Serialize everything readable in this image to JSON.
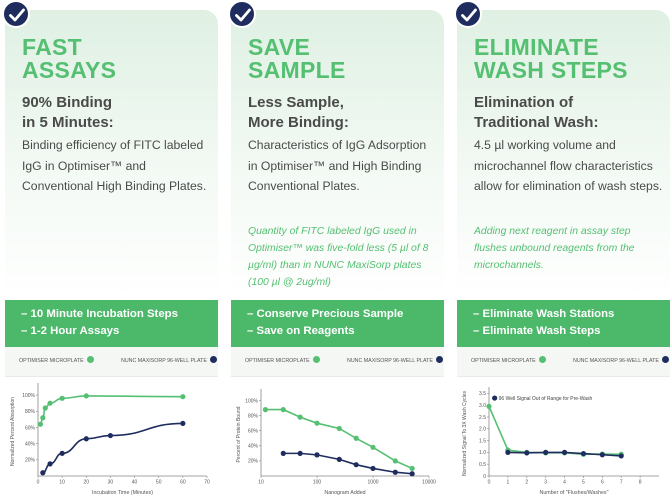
{
  "colors": {
    "green": "#55bf72",
    "green_bar": "#4cb96a",
    "navy": "#1f2d5e",
    "text": "#4a4a4a"
  },
  "panels": [
    {
      "title": "FAST\nASSAYS",
      "subtitle": "90% Binding\nin 5 Minutes:",
      "description": "Binding efficiency of FITC labeled IgG in Optimiser™ and Conventional High Binding Plates.",
      "note": "",
      "bullets": [
        "– 10 Minute Incubation Steps",
        "– 1-2 Hour Assays"
      ],
      "legend": {
        "optimiser": "OPTIMISER MICROPLATE",
        "nunc": "NUNC MAXISORP 96-WELL PLATE"
      }
    },
    {
      "title": "SAVE\nSAMPLE",
      "subtitle": "Less Sample,\nMore Binding:",
      "description": "Characteristics of IgG Adsorption in Optimiser™ and High Binding Conventional Plates.",
      "note": "Quantity of FITC labeled IgG used in Optimiser™ was five-fold less (5 µl of 8 µg/ml) than in NUNC MaxiSorp plates (100 µl @ 2ug/ml)",
      "bullets": [
        "– Conserve Precious Sample",
        "– Save on Reagents"
      ],
      "legend": {
        "optimiser": "OPTIMISER MICROPLATE",
        "nunc": "NUNC MAXISORP 96-WELL PLATE"
      }
    },
    {
      "title": "ELIMINATE\nWASH STEPS",
      "subtitle": "Elimination of\nTraditional Wash:",
      "description": "4.5 µl working volume and microchannel flow characteristics allow for elimination of wash steps.",
      "note": "Adding next reagent in assay step flushes unbound reagents from the microchannels.",
      "bullets": [
        "– Eliminate Wash Stations",
        "– Eliminate Wash Steps"
      ],
      "legend": {
        "optimiser": "OPTIMISER MICROPLATE",
        "nunc": "NUNC MAXISORP 96-WELL PLATE"
      }
    }
  ],
  "chart_data": [
    {
      "type": "line",
      "xlabel": "Incubation Time (Minutes)",
      "ylabel": "Normalized Percent Absorption",
      "xlim": [
        0,
        70
      ],
      "ylim": [
        0,
        110
      ],
      "xticks": [
        "0",
        "10",
        "20",
        "30",
        "40",
        "50",
        "60",
        "70"
      ],
      "xtick_values": [
        0,
        10,
        20,
        30,
        40,
        50,
        60,
        70
      ],
      "yticks": [
        "20%",
        "40%",
        "60%",
        "80%",
        "100%"
      ],
      "ytick_values": [
        20,
        40,
        60,
        80,
        100
      ],
      "series": [
        {
          "name": "OPTIMISER MICROPLATE",
          "color": "#55bf72",
          "x": [
            1,
            2,
            3,
            5,
            10,
            20,
            60
          ],
          "y": [
            64,
            72,
            84,
            90,
            96,
            99,
            98
          ]
        },
        {
          "name": "NUNC MAXISORP 96-WELL PLATE",
          "color": "#1f2d5e",
          "x": [
            2,
            5,
            10,
            20,
            30,
            60
          ],
          "y": [
            4,
            15,
            28,
            46,
            50,
            65
          ]
        }
      ]
    },
    {
      "type": "line",
      "xscale": "log",
      "xlabel": "Nanogram Added",
      "ylabel": "Percent of Protein Bound",
      "xlim": [
        10,
        10000
      ],
      "ylim": [
        0,
        110
      ],
      "xticks": [
        "10",
        "100",
        "1000",
        "10000"
      ],
      "xtick_values": [
        10,
        100,
        1000,
        10000
      ],
      "yticks": [
        "20%",
        "40%",
        "60%",
        "80%",
        "100%"
      ],
      "ytick_values": [
        20,
        40,
        60,
        80,
        100
      ],
      "series": [
        {
          "name": "OPTIMISER MICROPLATE",
          "color": "#55bf72",
          "x": [
            12,
            25,
            50,
            100,
            250,
            500,
            1000,
            2500,
            5000
          ],
          "y": [
            88,
            88,
            78,
            70,
            63,
            50,
            38,
            20,
            10
          ]
        },
        {
          "name": "NUNC MAXISORP 96-WELL PLATE",
          "color": "#1f2d5e",
          "x": [
            25,
            50,
            100,
            250,
            500,
            1000,
            2500,
            5000
          ],
          "y": [
            30,
            30,
            28,
            22,
            15,
            10,
            5,
            3
          ]
        }
      ]
    },
    {
      "type": "line",
      "xlabel": "Number of \"Flushes/Washes\"",
      "ylabel": "Normalized Signal To 3X Wash Cycles",
      "xlim": [
        0,
        9
      ],
      "ylim": [
        0,
        3.6
      ],
      "xticks": [
        "0",
        "1",
        "2",
        "3",
        "4",
        "5",
        "6",
        "7",
        "8"
      ],
      "xtick_values": [
        0,
        1,
        2,
        3,
        4,
        5,
        6,
        7,
        8
      ],
      "yticks": [
        "0",
        "0.5",
        "1.0",
        "1.5",
        "2.0",
        "2.5",
        "3.0",
        "3.5"
      ],
      "ytick_values": [
        0,
        0.5,
        1,
        1.5,
        2,
        2.5,
        3,
        3.5
      ],
      "annotation": "96 Well Signal Out of Range for Pre-Wash",
      "annotation_point": [
        0.3,
        3.3
      ],
      "series": [
        {
          "name": "OPTIMISER MICROPLATE",
          "color": "#55bf72",
          "x": [
            0,
            1,
            2,
            3,
            4,
            5,
            6,
            7
          ],
          "y": [
            2.95,
            1.1,
            1.0,
            0.98,
            0.98,
            0.92,
            0.93,
            0.92
          ]
        },
        {
          "name": "NUNC MAXISORP 96-WELL PLATE",
          "color": "#1f2d5e",
          "x": [
            1,
            2,
            3,
            4,
            5,
            6,
            7
          ],
          "y": [
            1.0,
            0.98,
            1.0,
            1.0,
            0.95,
            0.9,
            0.85
          ]
        }
      ]
    }
  ]
}
